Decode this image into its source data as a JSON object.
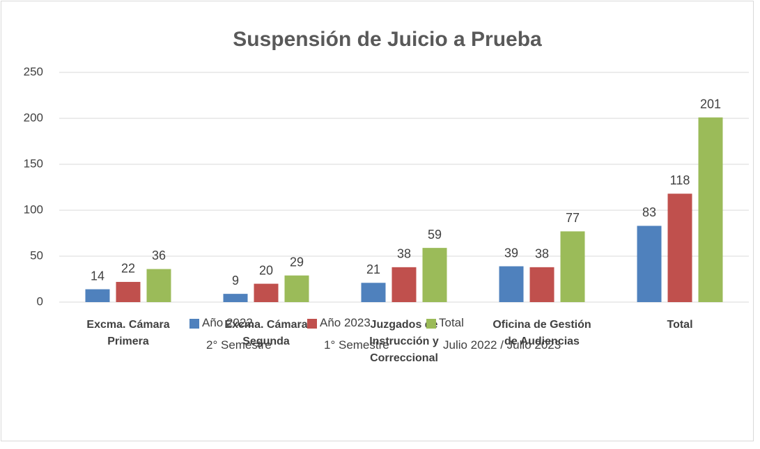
{
  "chart_data": {
    "type": "bar",
    "title": "Suspensión de Juicio a Prueba",
    "categories": [
      "Excma. Cámara\nPrimera",
      "Excma. Cámara\nSegunda",
      "Juzgados de\nInstrucción y\nCorreccional",
      "Oficina de Gestión\nde Audiencias",
      "Total"
    ],
    "series": [
      {
        "name": "Año 2022\n2° Semestre",
        "color": "#4f81bd",
        "values": [
          14,
          9,
          21,
          39,
          83
        ]
      },
      {
        "name": "Año 2023\n1° Semestre",
        "color": "#c0504d",
        "values": [
          22,
          20,
          38,
          38,
          118
        ]
      },
      {
        "name": "Total\nJulio 2022 / Julio 2023",
        "color": "#9bbb59",
        "values": [
          36,
          29,
          59,
          77,
          201
        ]
      }
    ],
    "ylim": [
      0,
      250
    ],
    "yticks": [
      0,
      50,
      100,
      150,
      200,
      250
    ],
    "grid": true,
    "legend": "bottom"
  }
}
